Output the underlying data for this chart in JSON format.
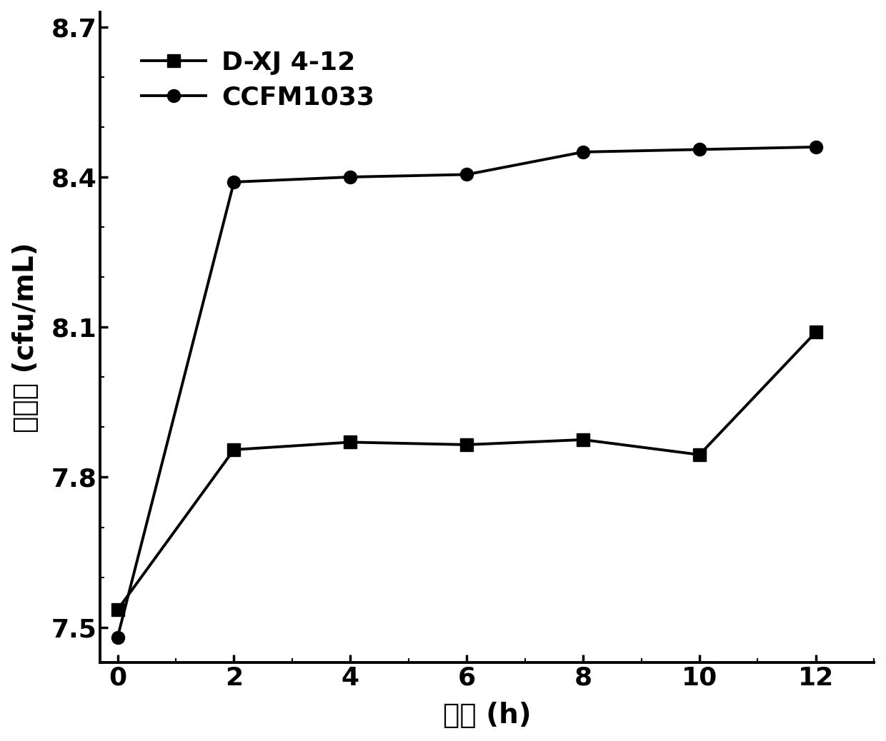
{
  "x": [
    0,
    2,
    4,
    6,
    8,
    10,
    12
  ],
  "dxj_y": [
    7.535,
    7.855,
    7.87,
    7.865,
    7.875,
    7.845,
    8.09
  ],
  "ccfm_y": [
    7.48,
    8.39,
    8.4,
    8.405,
    8.45,
    8.455,
    8.46
  ],
  "dxj_label": "D-XJ 4-12",
  "ccfm_label": "CCFM1033",
  "xlabel": "时间 (h)",
  "ylabel": "活菌数 (cfu/mL)",
  "line_color": "#000000",
  "bg_color": "#ffffff",
  "xlim": [
    -0.3,
    13
  ],
  "ylim": [
    7.43,
    8.73
  ],
  "yticks": [
    7.5,
    7.8,
    8.1,
    8.4,
    8.7
  ],
  "xticks": [
    0,
    2,
    4,
    6,
    8,
    10,
    12
  ],
  "linewidth": 2.8,
  "markersize": 13,
  "fontsize_label": 28,
  "fontsize_tick": 26,
  "fontsize_legend": 26
}
